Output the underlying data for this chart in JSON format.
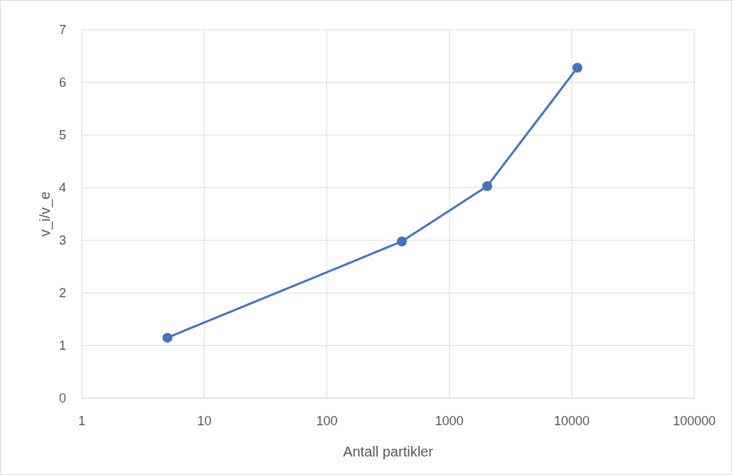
{
  "chart_data": {
    "type": "line",
    "xlabel": "Antall partikler",
    "ylabel": "v_i/v_e",
    "x": [
      5,
      410,
      2040,
      11100
    ],
    "series": [
      {
        "color": "#4472c4",
        "values": [
          1.15,
          2.98,
          4.03,
          6.28
        ]
      }
    ],
    "xlim": [
      1,
      100000
    ],
    "xticks": [
      1,
      10,
      100,
      1000,
      10000,
      100000
    ],
    "ylim": [
      0,
      7
    ],
    "yticks": [
      0,
      1,
      2,
      3,
      4,
      5,
      6,
      7
    ],
    "log": "x",
    "grid": true,
    "marker": "circle",
    "line_style": "solid"
  }
}
